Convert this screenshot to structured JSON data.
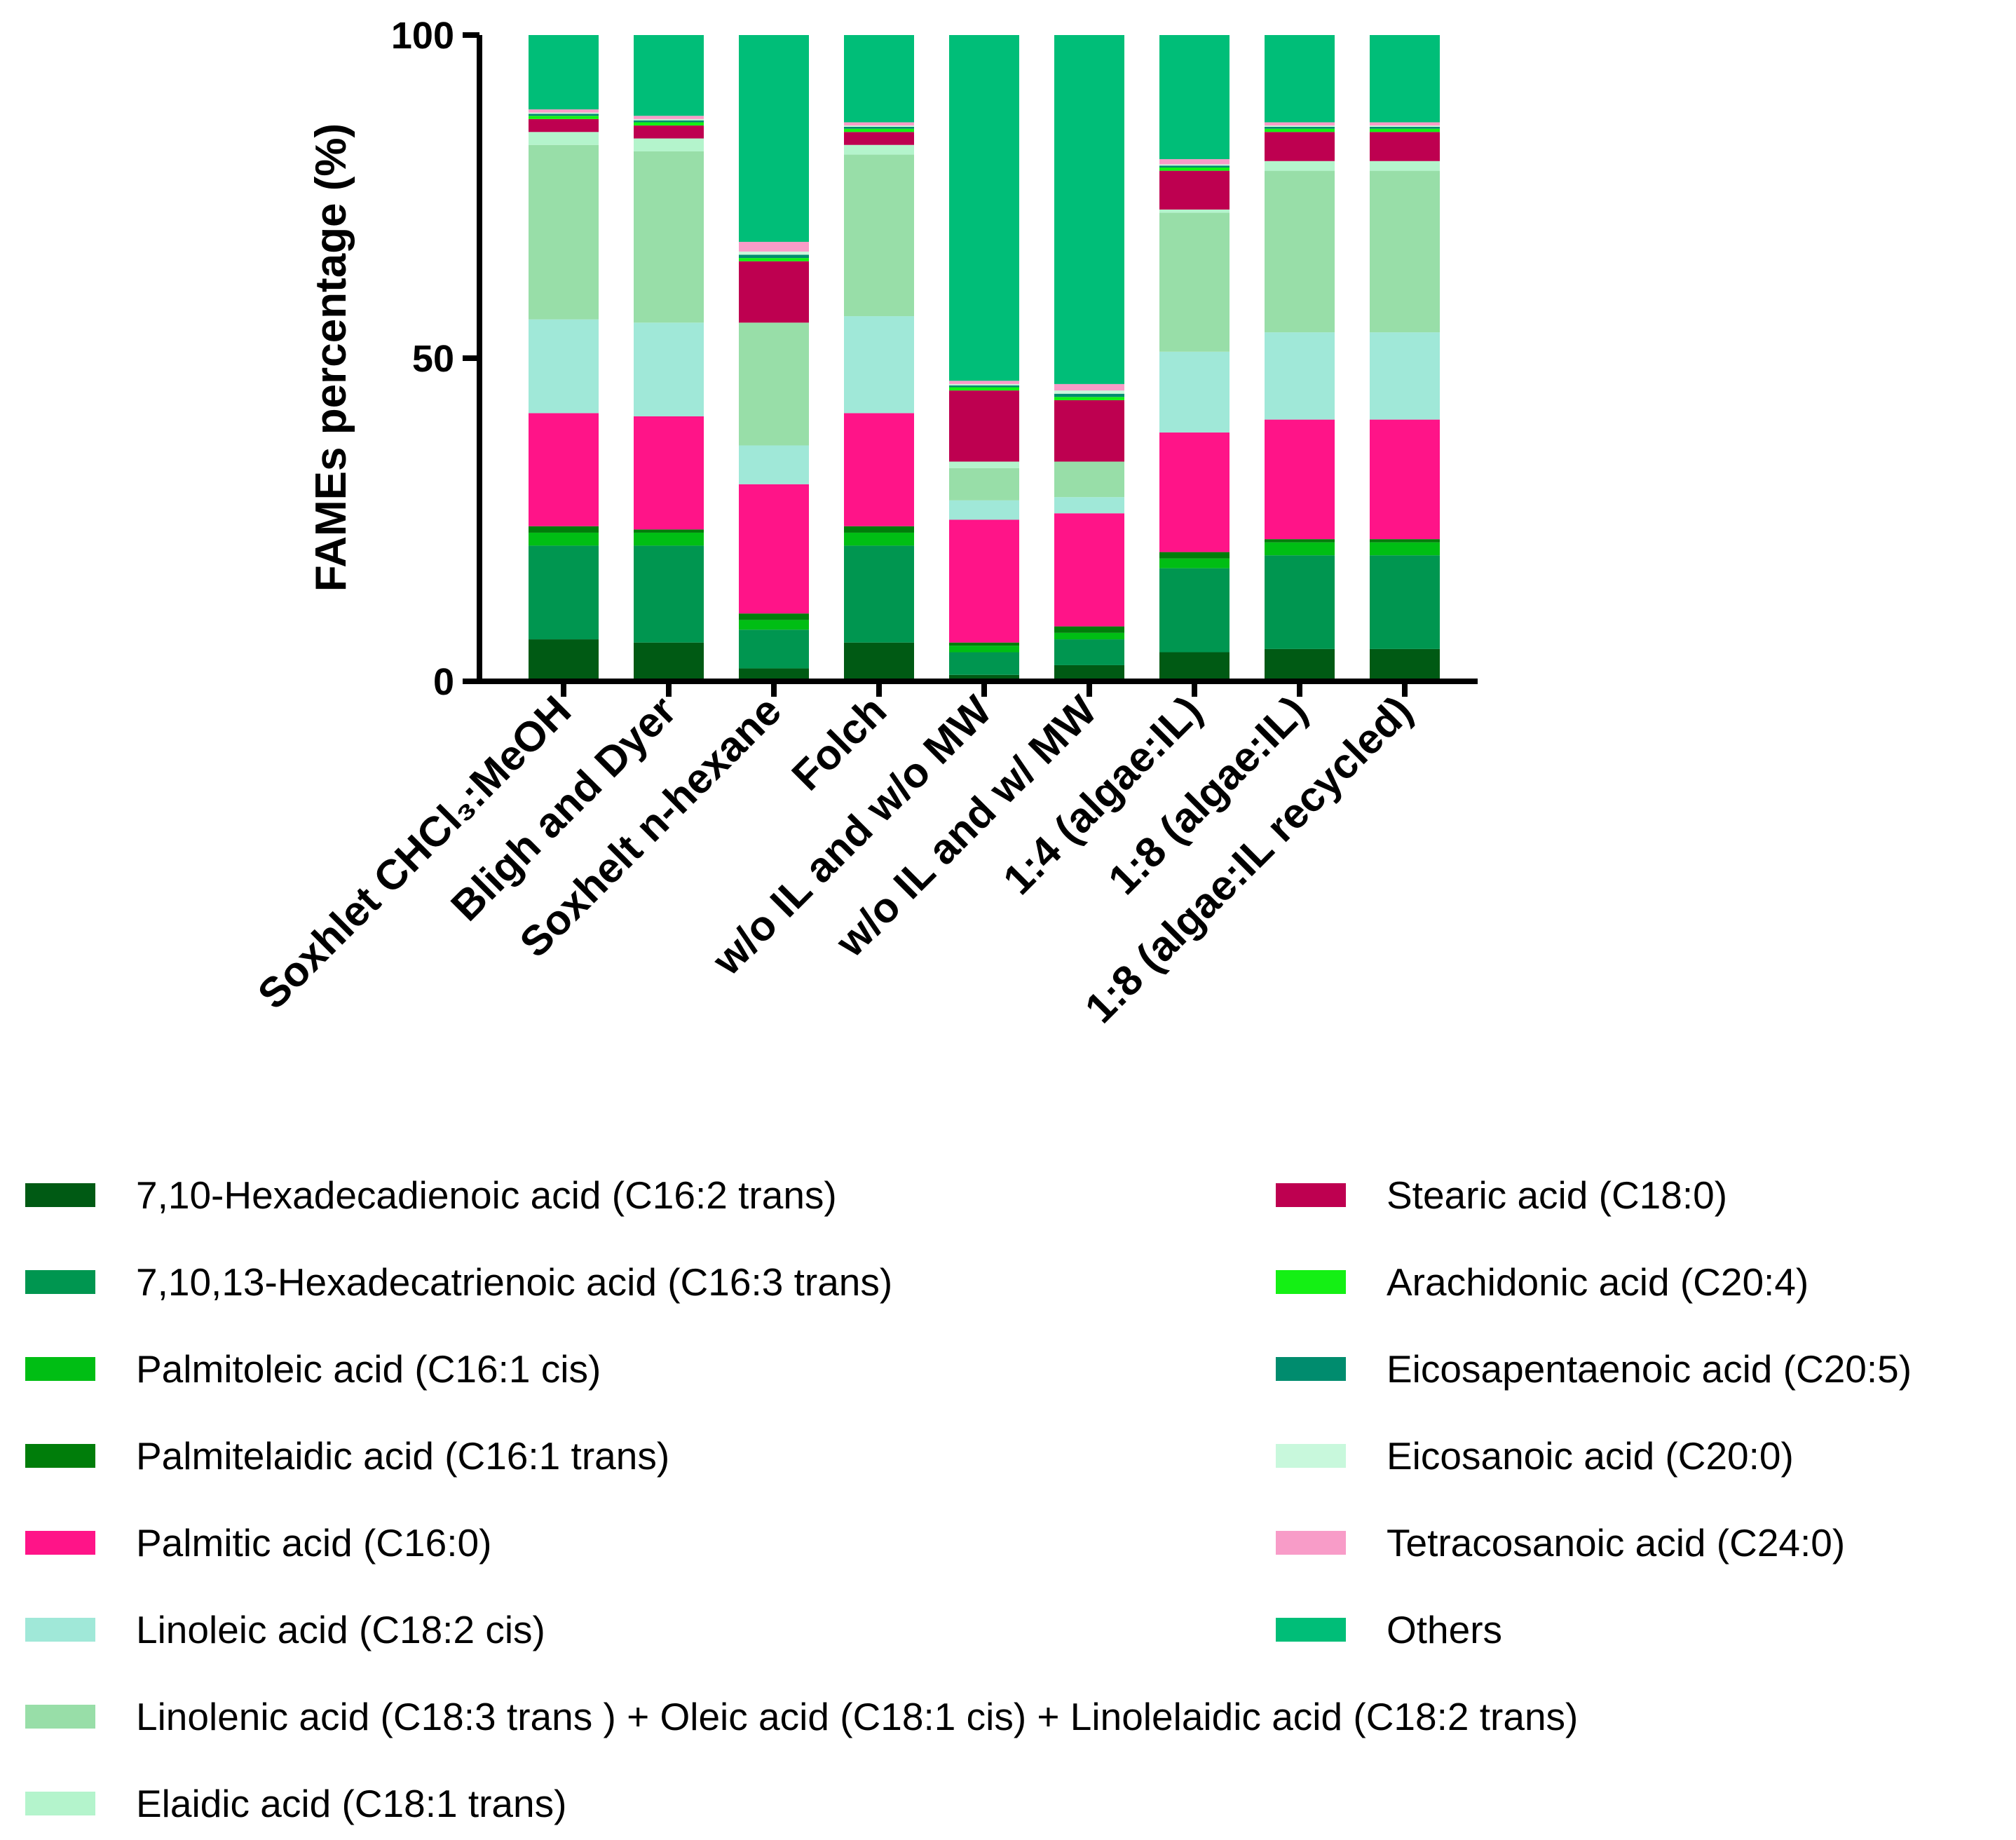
{
  "chart_data": {
    "type": "stacked-bar",
    "title": "",
    "xlabel": "",
    "ylabel": "FAMEs percentage (%)",
    "ylim": [
      0,
      100
    ],
    "yticks": [
      "0",
      "50",
      "100"
    ],
    "categories": [
      "Soxhlet CHCl₃:MeOH",
      "Bligh and Dyer",
      "Soxhelt n-hexane",
      "Folch",
      "w/o IL and w/o MW",
      "w/o IL and w/ MW",
      "1:4 (algae:IL)",
      "1:8 (algae:IL)",
      "1:8 (algae:IL recycled)"
    ],
    "series": [
      {
        "name": "7,10-Hexadecadienoic acid (C16:2 trans)",
        "color": "#005a14",
        "values": [
          6.5,
          6,
          2,
          6,
          1,
          2.5,
          4.5,
          5,
          5
        ]
      },
      {
        "name": "7,10,13-Hexadecatrienoic acid (C16:3 trans)",
        "color": "#009650",
        "values": [
          14.5,
          15,
          6,
          15,
          3.5,
          4,
          13,
          14.5,
          14.5
        ]
      },
      {
        "name": "Palmitoleic acid (C16:1 cis)",
        "color": "#00be14",
        "values": [
          2,
          2,
          1.5,
          2,
          1,
          1,
          1.5,
          2,
          2
        ]
      },
      {
        "name": "Palmitelaidic acid (C16:1 trans)",
        "color": "#007d0a",
        "values": [
          1,
          0.5,
          1,
          1,
          0.5,
          1,
          1,
          0.5,
          0.5
        ]
      },
      {
        "name": "Palmitic acid (C16:0)",
        "color": "#ff1488",
        "values": [
          17.5,
          17.5,
          20,
          17.5,
          19,
          17.5,
          18.5,
          18.5,
          18.5
        ]
      },
      {
        "name": "Linoleic acid (C18:2 cis)",
        "color": "#a0e8d8",
        "values": [
          14.5,
          14.5,
          6,
          15,
          3,
          2.5,
          12.5,
          13.5,
          13.5
        ]
      },
      {
        "name": "Linolenic acid (C18:3 trans ) + Oleic acid (C18:1 cis) + Linolelaidic acid (C18:2 trans)",
        "color": "#98dea8",
        "values": [
          27,
          26.5,
          19,
          25,
          5,
          5.5,
          21.5,
          25,
          25
        ]
      },
      {
        "name": "Elaidic acid (C18:1 trans)",
        "color": "#b4f4cc",
        "values": [
          2,
          2,
          0,
          1.5,
          1,
          0,
          0.5,
          1.5,
          1.5
        ]
      },
      {
        "name": "Stearic acid (C18:0)",
        "color": "#be0050",
        "values": [
          2,
          2,
          9.5,
          2,
          11,
          9.5,
          6,
          4.5,
          4.5
        ]
      },
      {
        "name": "Arachidonic acid (C20:4)",
        "color": "#14f014",
        "values": [
          0.5,
          0.5,
          0.5,
          0.5,
          0.5,
          0.5,
          0.5,
          0.5,
          0.5
        ]
      },
      {
        "name": "Eicosapentaenoic acid (C20:5)",
        "color": "#008c6e",
        "values": [
          0.3,
          0.3,
          0.5,
          0.3,
          0.3,
          0.5,
          0.3,
          0.3,
          0.3
        ]
      },
      {
        "name": "Eicosanoic acid (C20:0)",
        "color": "#c8f8dc",
        "values": [
          0.2,
          0.2,
          0.5,
          0.2,
          0.2,
          0.5,
          0.2,
          0.2,
          0.2
        ]
      },
      {
        "name": "Tetracosanoic acid (C24:0)",
        "color": "#f89cc8",
        "values": [
          0.5,
          0.5,
          1.5,
          0.5,
          0.5,
          1,
          0.8,
          0.5,
          0.5
        ]
      },
      {
        "name": "Others",
        "color": "#00be78",
        "values": [
          11.5,
          12.5,
          32,
          13.5,
          53.5,
          54,
          19.2,
          13.5,
          13.5
        ]
      }
    ],
    "legend_position": "bottom",
    "grid": false
  },
  "axis_colors": {
    "axis": "#000000"
  }
}
